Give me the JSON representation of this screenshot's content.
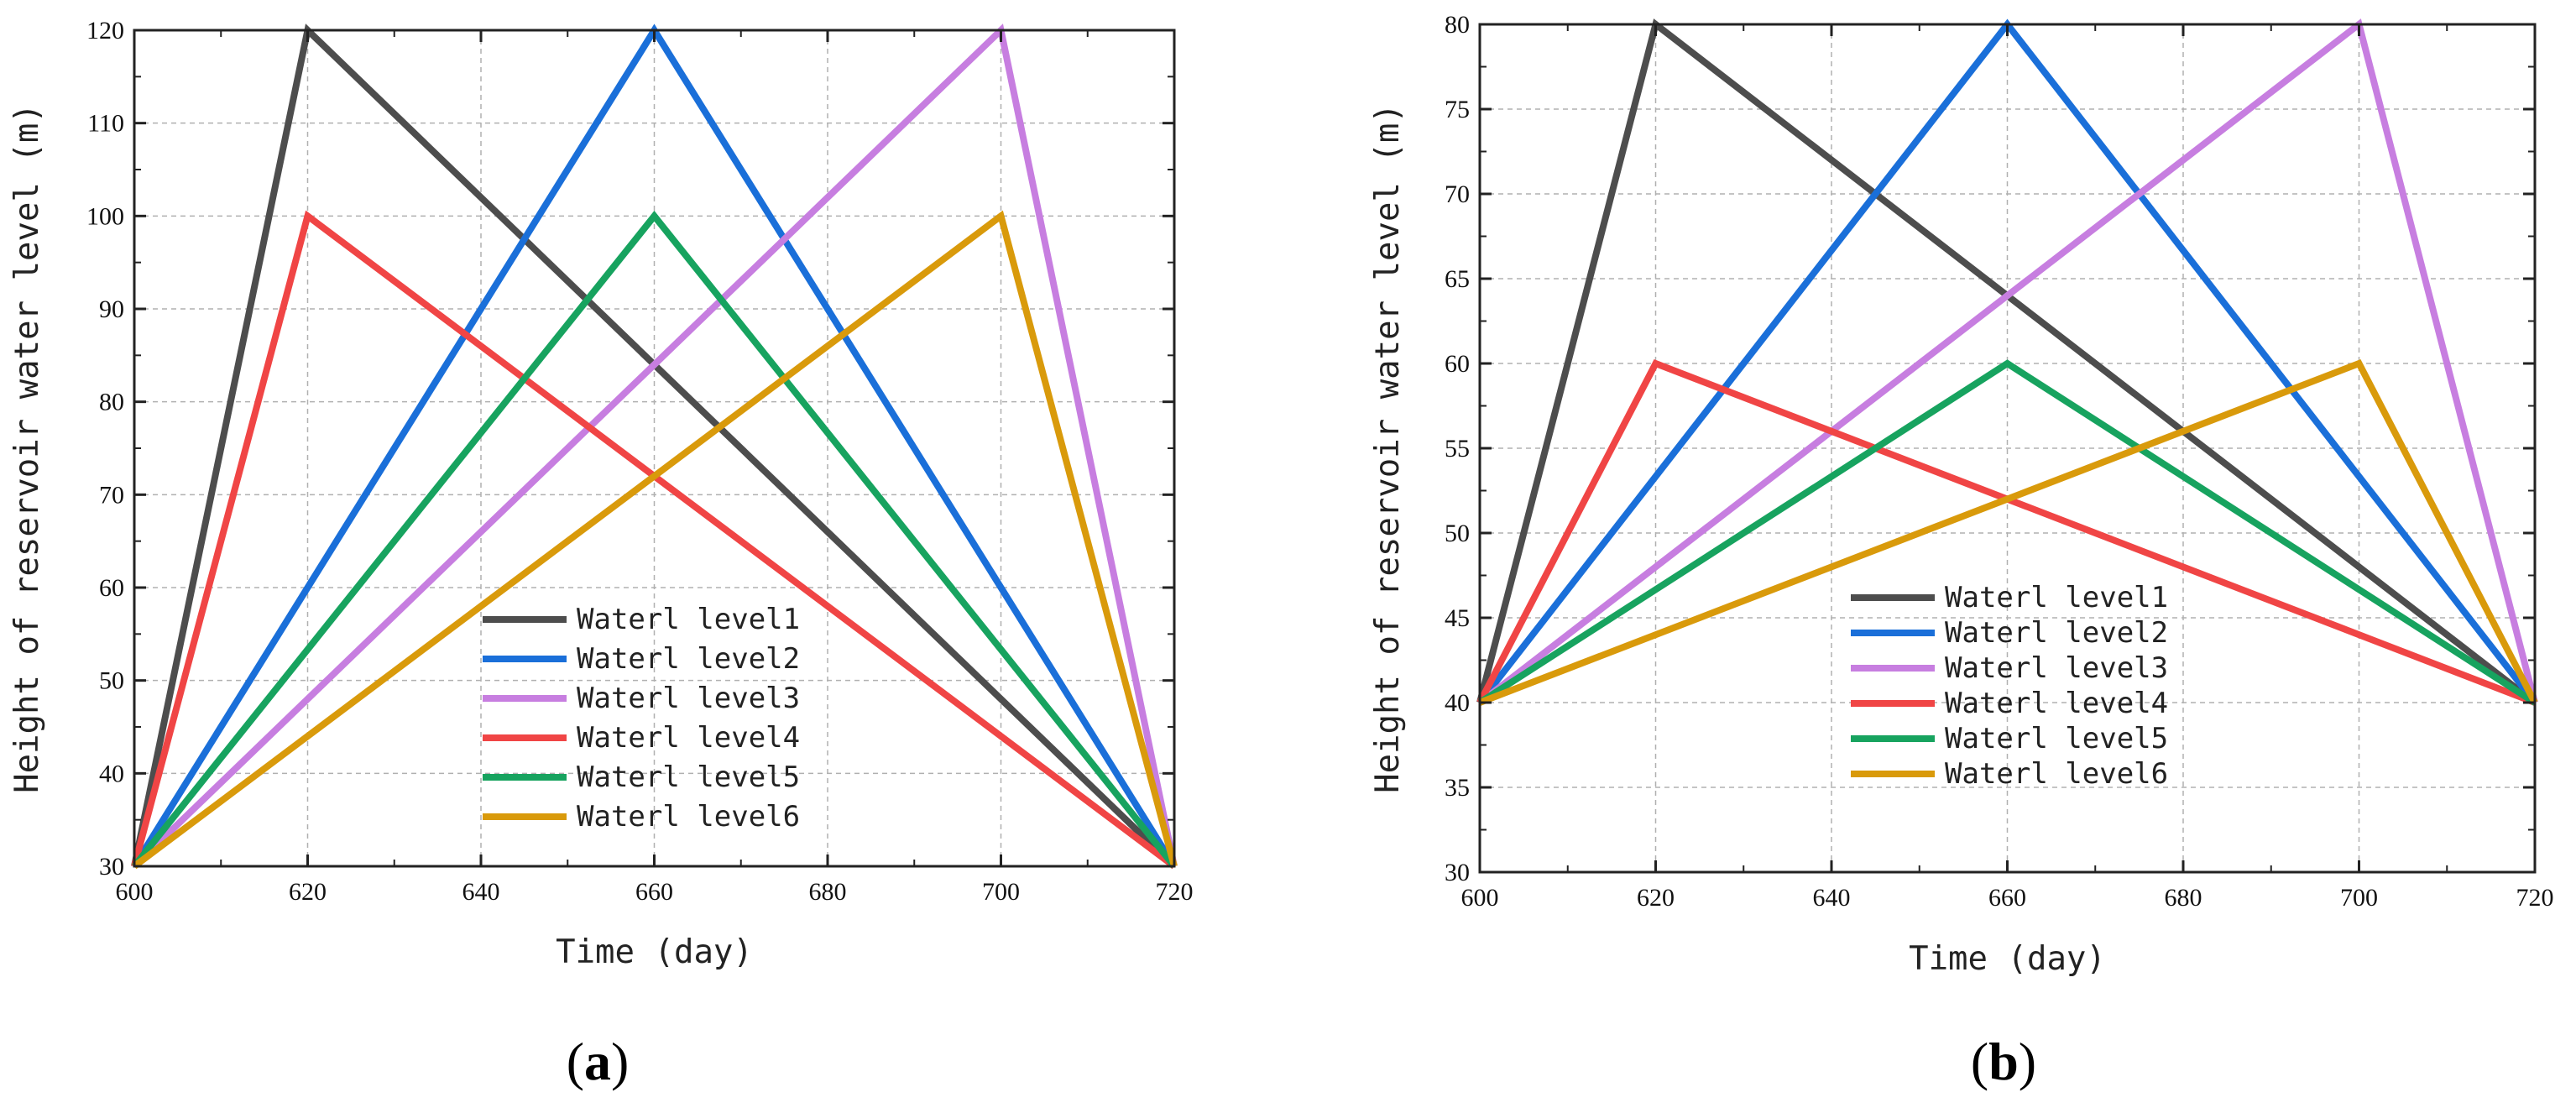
{
  "chart_data": [
    {
      "type": "line",
      "panel_label": "a",
      "xlabel": "Time (day)",
      "ylabel": "Height of reservoir water level (m)",
      "xlim": [
        600,
        720
      ],
      "ylim": [
        30,
        120
      ],
      "xticks": [
        600,
        620,
        640,
        660,
        680,
        700,
        720
      ],
      "yticks": [
        30,
        40,
        50,
        60,
        70,
        80,
        90,
        100,
        110,
        120
      ],
      "grid": true,
      "legend_position": "bottom-center",
      "series": [
        {
          "name": "Waterl level1",
          "color": "#4d4d4d",
          "x": [
            600,
            620,
            720
          ],
          "y": [
            30,
            120,
            30
          ]
        },
        {
          "name": "Waterl level2",
          "color": "#1a6fd9",
          "x": [
            600,
            660,
            720
          ],
          "y": [
            30,
            120,
            30
          ]
        },
        {
          "name": "Waterl level3",
          "color": "#c77ee0",
          "x": [
            600,
            700,
            720
          ],
          "y": [
            30,
            120,
            30
          ]
        },
        {
          "name": "Waterl level4",
          "color": "#f04545",
          "x": [
            600,
            620,
            720
          ],
          "y": [
            30,
            100,
            30
          ]
        },
        {
          "name": "Waterl level5",
          "color": "#17a35f",
          "x": [
            600,
            660,
            720
          ],
          "y": [
            30,
            100,
            30
          ]
        },
        {
          "name": "Waterl level6",
          "color": "#d99a0b",
          "x": [
            600,
            700,
            720
          ],
          "y": [
            30,
            100,
            30
          ]
        }
      ]
    },
    {
      "type": "line",
      "panel_label": "b",
      "xlabel": "Time (day)",
      "ylabel": "Height of reservoir water level (m)",
      "xlim": [
        600,
        720
      ],
      "ylim": [
        30,
        80
      ],
      "xticks": [
        600,
        620,
        640,
        660,
        680,
        700,
        720
      ],
      "yticks": [
        30,
        35,
        40,
        45,
        50,
        55,
        60,
        65,
        70,
        75,
        80
      ],
      "grid": true,
      "legend_position": "right-center",
      "series": [
        {
          "name": "Waterl level1",
          "color": "#4d4d4d",
          "x": [
            600,
            620,
            720
          ],
          "y": [
            40,
            80,
            40
          ]
        },
        {
          "name": "Waterl level2",
          "color": "#1a6fd9",
          "x": [
            600,
            660,
            720
          ],
          "y": [
            40,
            80,
            40
          ]
        },
        {
          "name": "Waterl level3",
          "color": "#c77ee0",
          "x": [
            600,
            700,
            720
          ],
          "y": [
            40,
            80,
            40
          ]
        },
        {
          "name": "Waterl level4",
          "color": "#f04545",
          "x": [
            600,
            620,
            720
          ],
          "y": [
            40,
            60,
            40
          ]
        },
        {
          "name": "Waterl level5",
          "color": "#17a35f",
          "x": [
            600,
            660,
            720
          ],
          "y": [
            40,
            60,
            40
          ]
        },
        {
          "name": "Waterl level6",
          "color": "#d99a0b",
          "x": [
            600,
            700,
            720
          ],
          "y": [
            40,
            60,
            40
          ]
        }
      ]
    }
  ]
}
